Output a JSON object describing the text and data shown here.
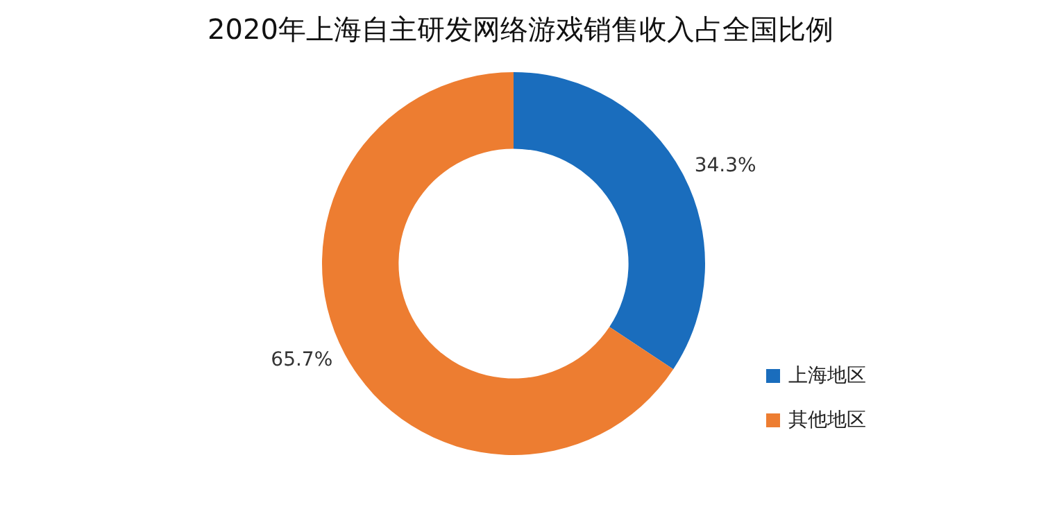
{
  "chart_data": {
    "type": "donut",
    "title": "2020年上海自主研发网络游戏销售收入占全国比例",
    "categories": [
      "上海地区",
      "其他地区"
    ],
    "values": [
      34.3,
      65.7
    ],
    "colors": [
      "#1a6dbd",
      "#ed7d31"
    ],
    "value_labels": [
      "34.3%",
      "65.7%"
    ],
    "legend": "bottom right"
  }
}
